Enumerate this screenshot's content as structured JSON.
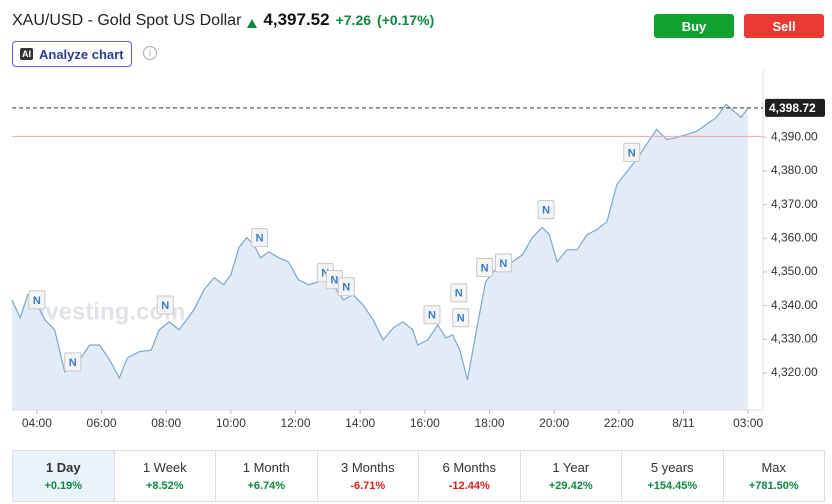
{
  "header": {
    "title": "XAU/USD - Gold Spot US Dollar",
    "price": "4,397.52",
    "change": "+7.26",
    "change_pct": "(+0.17%)",
    "buy": "Buy",
    "sell": "Sell",
    "ai_badge": "AI",
    "analyze": "Analyze chart"
  },
  "chart_data": {
    "type": "area",
    "color": "#7aa7d6",
    "fill": "#e3ecf6",
    "x": [
      3.23,
      3.48,
      3.72,
      4,
      4.25,
      4.55,
      4.86,
      5.08,
      5.32,
      5.63,
      5.94,
      6.25,
      6.55,
      6.8,
      7.17,
      7.54,
      7.78,
      8.09,
      8.4,
      8.86,
      9.17,
      9.48,
      9.78,
      10,
      10.25,
      10.49,
      10.71,
      10.92,
      11.17,
      11.48,
      11.78,
      12.09,
      12.4,
      12.71,
      13.02,
      13.26,
      13.48,
      13.78,
      14.09,
      14.4,
      14.71,
      15.02,
      15.32,
      15.63,
      15.78,
      16.09,
      16.4,
      16.65,
      16.86,
      17.08,
      17.32,
      17.57,
      17.88,
      18.18,
      18.4,
      18.71,
      19.02,
      19.32,
      19.63,
      19.85,
      20.09,
      20.4,
      20.71,
      21.02,
      21.32,
      21.63,
      21.94,
      22.25,
      22.55,
      22.86,
      23.17,
      23.48,
      23.78,
      24.09,
      24.4,
      24.71,
      25.02,
      25.32,
      25.57,
      25.78,
      26.0
    ],
    "values": [
      4341.7,
      4336.4,
      4343.2,
      4340.2,
      4335.8,
      4332.8,
      4320.3,
      4321.5,
      4323.9,
      4328.3,
      4328.3,
      4323.9,
      4318.5,
      4324.5,
      4326.3,
      4326.8,
      4332.8,
      4335.2,
      4332.8,
      4338.8,
      4344.7,
      4348.3,
      4346.2,
      4349.2,
      4357.2,
      4360.2,
      4358.1,
      4354.2,
      4356.0,
      4354.2,
      4353.0,
      4347.7,
      4346.2,
      4347.1,
      4348.3,
      4344.7,
      4341.7,
      4343.2,
      4340.2,
      4335.8,
      4329.8,
      4333.4,
      4335.2,
      4332.8,
      4328.3,
      4329.8,
      4334.3,
      4330.4,
      4331.3,
      4326.8,
      4317.9,
      4331.3,
      4347.1,
      4350.7,
      4351.3,
      4353.0,
      4355.1,
      4360.2,
      4363.2,
      4361.1,
      4353.0,
      4356.6,
      4356.6,
      4361.1,
      4362.6,
      4364.9,
      4376.0,
      4379.8,
      4383.4,
      4387.9,
      4392.3,
      4389.3,
      4389.9,
      4390.8,
      4391.7,
      4393.8,
      4395.9,
      4399.8,
      4397.7,
      4395.9,
      4398.7
    ],
    "xlim": [
      3.23,
      26.46
    ],
    "xticks": [
      {
        "value": 4,
        "label": "04:00"
      },
      {
        "value": 6,
        "label": "06:00"
      },
      {
        "value": 8,
        "label": "08:00"
      },
      {
        "value": 10,
        "label": "10:00"
      },
      {
        "value": 12,
        "label": "12:00"
      },
      {
        "value": 14,
        "label": "14:00"
      },
      {
        "value": 16,
        "label": "16:00"
      },
      {
        "value": 18,
        "label": "18:00"
      },
      {
        "value": 20,
        "label": "20:00"
      },
      {
        "value": 22,
        "label": "22:00"
      },
      {
        "value": 24,
        "label": "8/11"
      },
      {
        "value": 26,
        "label": "03:00"
      }
    ],
    "ylim": [
      4309,
      4407
    ],
    "yticks": [
      {
        "value": 4320,
        "label": "4,320.00"
      },
      {
        "value": 4330,
        "label": "4,330.00"
      },
      {
        "value": 4340,
        "label": "4,340.00"
      },
      {
        "value": 4350,
        "label": "4,350.00"
      },
      {
        "value": 4360,
        "label": "4,360.00"
      },
      {
        "value": 4370,
        "label": "4,370.00"
      },
      {
        "value": 4380,
        "label": "4,380.00"
      },
      {
        "value": 4390,
        "label": "4,390.00"
      }
    ],
    "last_price": {
      "value": 4398.72,
      "label": "4,398.72"
    },
    "reference_line": 4390.26,
    "watermark": "Investing.com",
    "news": [
      {
        "label": "N",
        "x": 4,
        "y": 4341.7
      },
      {
        "label": "N",
        "x": 5.11,
        "y": 4323.3
      },
      {
        "label": "N",
        "x": 7.97,
        "y": 4340.2
      },
      {
        "label": "N",
        "x": 10.89,
        "y": 4360.2
      },
      {
        "label": "N",
        "x": 12.92,
        "y": 4349.8
      },
      {
        "label": "N",
        "x": 13.2,
        "y": 4347.7
      },
      {
        "label": "N",
        "x": 13.57,
        "y": 4345.6
      },
      {
        "label": "N",
        "x": 16.22,
        "y": 4337.3
      },
      {
        "label": "N",
        "x": 17.05,
        "y": 4343.8
      },
      {
        "label": "N",
        "x": 17.11,
        "y": 4336.4
      },
      {
        "label": "N",
        "x": 17.85,
        "y": 4351.3
      },
      {
        "label": "N",
        "x": 18.43,
        "y": 4352.7
      },
      {
        "label": "N",
        "x": 19.75,
        "y": 4368.5
      },
      {
        "label": "N",
        "x": 22.4,
        "y": 4385.5
      }
    ]
  },
  "periods": [
    {
      "label": "1 Day",
      "change": "+0.19%",
      "active": true
    },
    {
      "label": "1 Week",
      "change": "+8.52%",
      "active": false
    },
    {
      "label": "1 Month",
      "change": "+6.74%",
      "active": false
    },
    {
      "label": "3 Months",
      "change": "-6.71%",
      "active": false
    },
    {
      "label": "6 Months",
      "change": "-12.44%",
      "active": false
    },
    {
      "label": "1 Year",
      "change": "+29.42%",
      "active": false
    },
    {
      "label": "5 years",
      "change": "+154.45%",
      "active": false
    },
    {
      "label": "Max",
      "change": "+781.50%",
      "active": false
    }
  ]
}
